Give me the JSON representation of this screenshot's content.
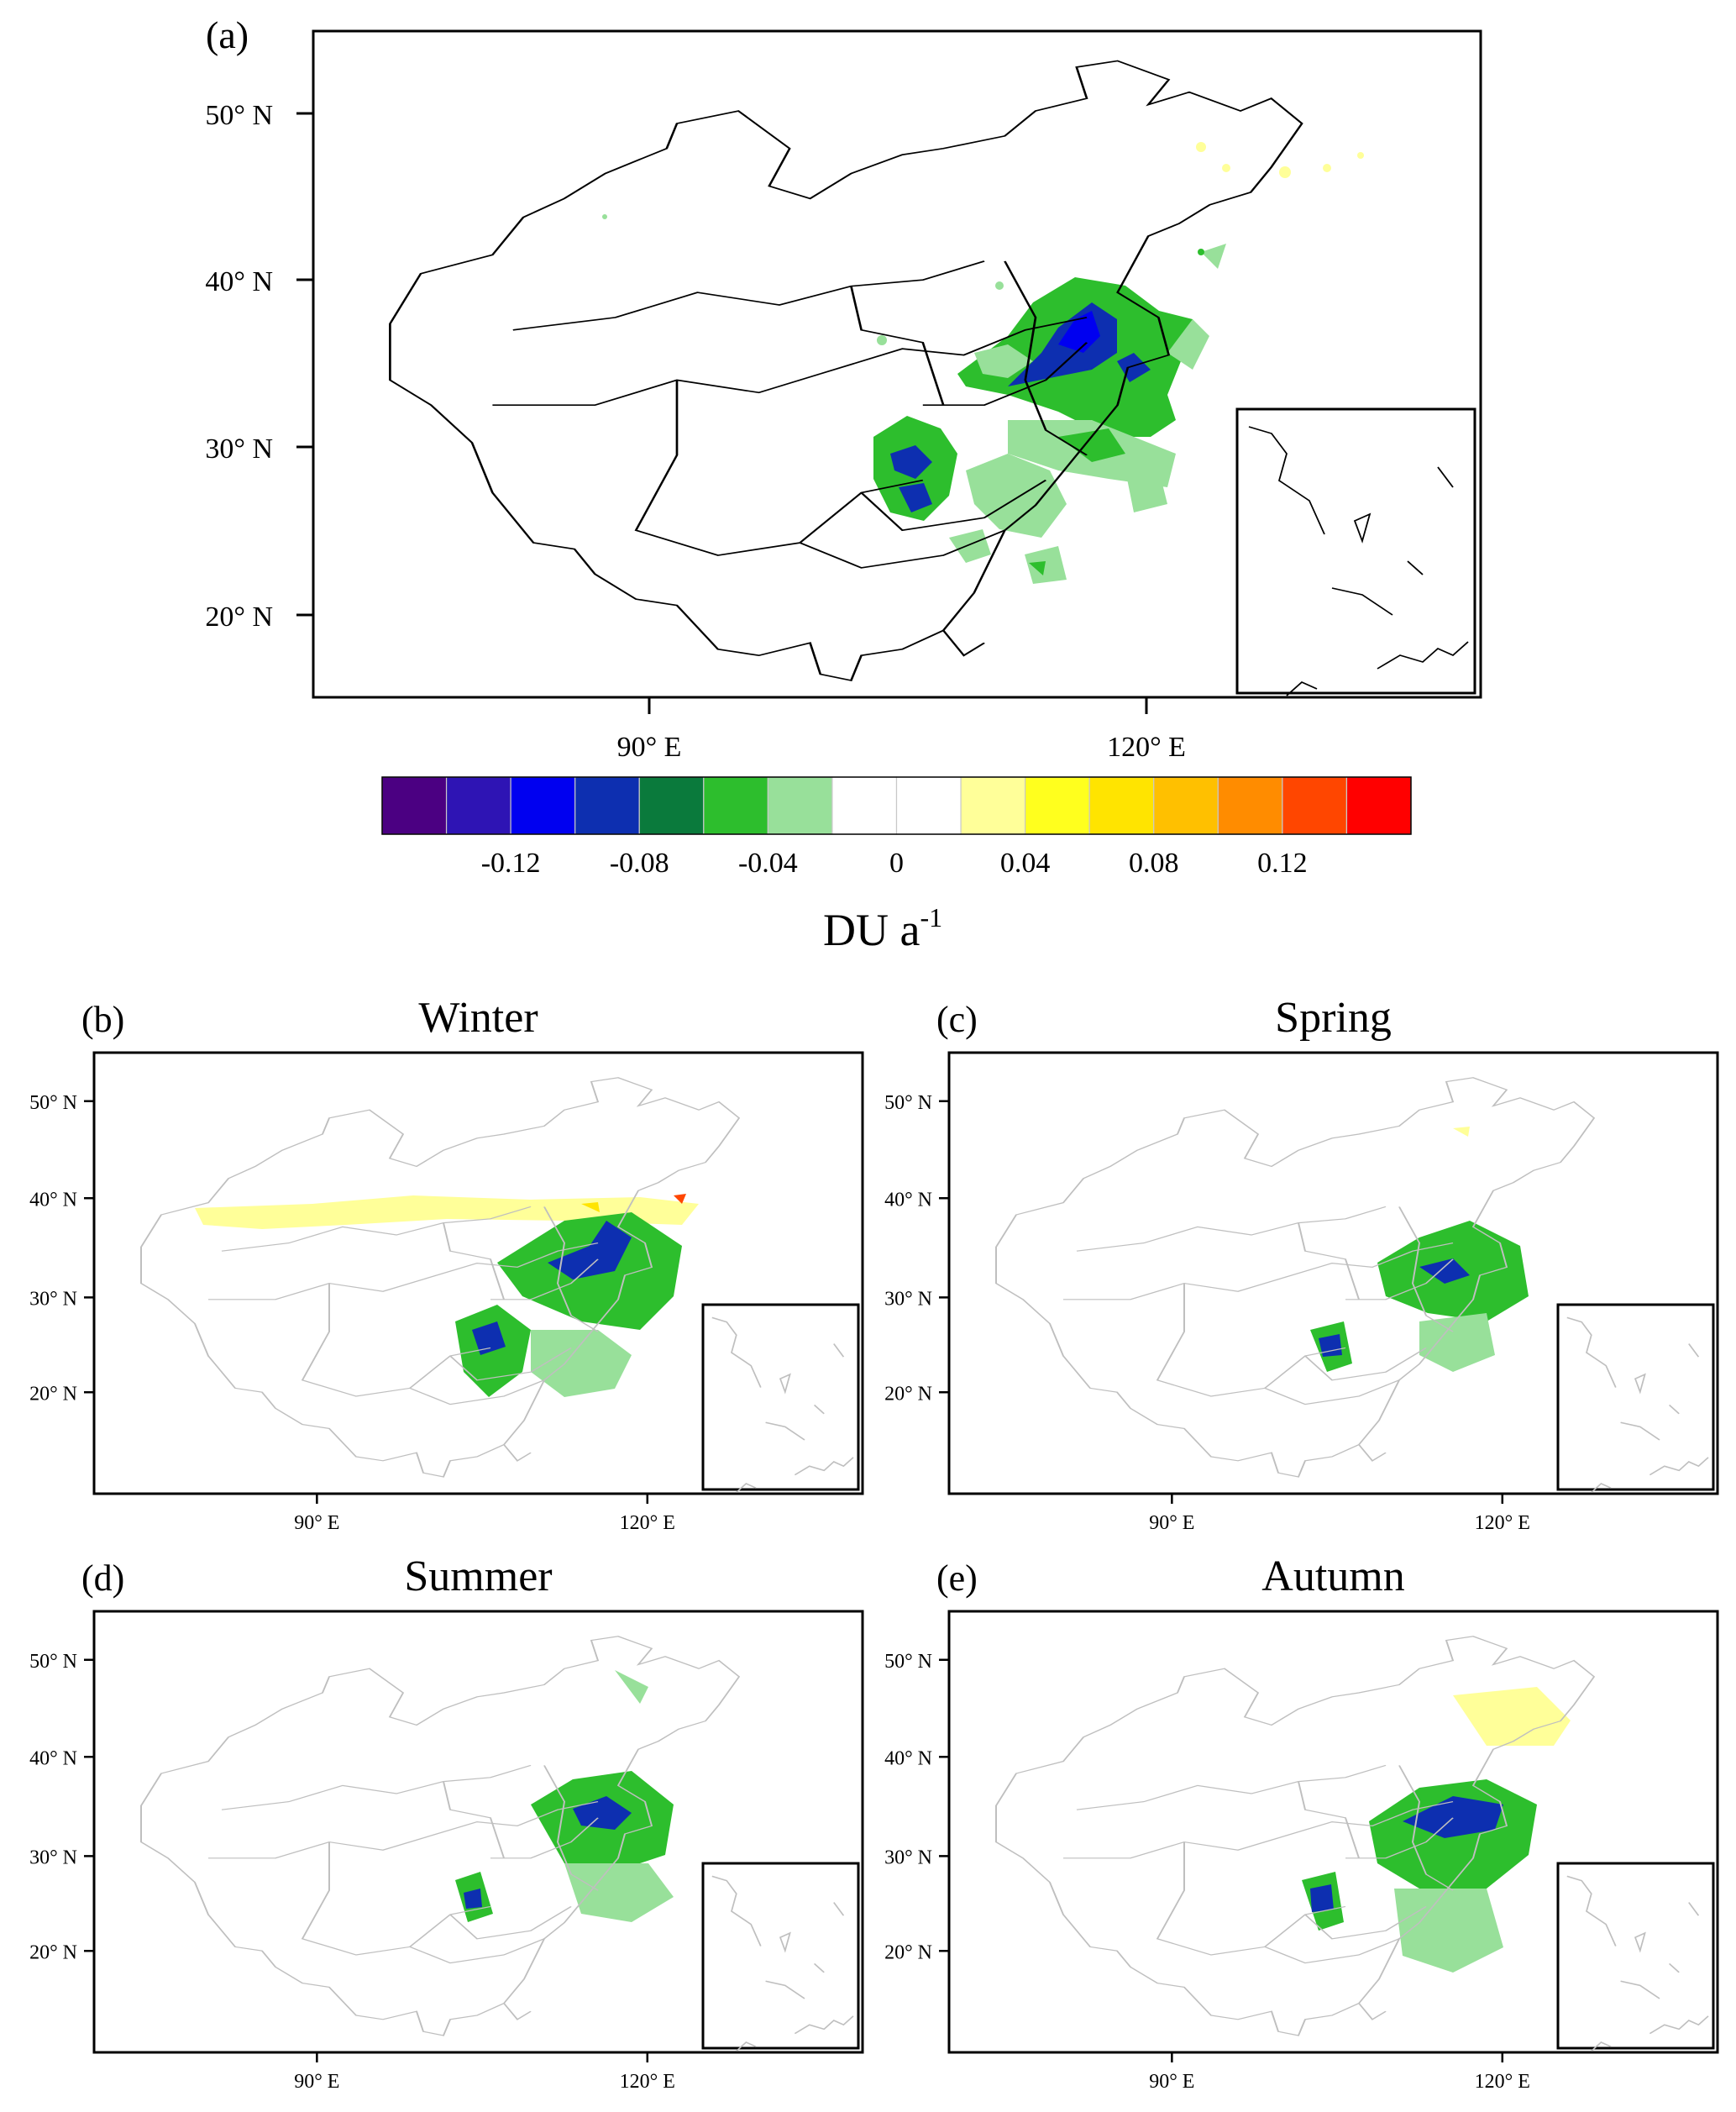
{
  "lat_labels": [
    "20° N",
    "30° N",
    "40° N",
    "50° N"
  ],
  "lon_labels": [
    "90° E",
    "120° E"
  ],
  "main_panel": {
    "letter": "(a)",
    "title": ""
  },
  "colorbar": {
    "colors": [
      "#4B0082",
      "#2E14B4",
      "#0000F0",
      "#0D2FB0",
      "#0A7A3C",
      "#2DBE2D",
      "#98E09A",
      "#FFFFFF",
      "#FFFFFF",
      "#FFFF99",
      "#FFFF1E",
      "#FFE400",
      "#FFC000",
      "#FF8C00",
      "#FF4600",
      "#FF0000"
    ],
    "tick_labels": [
      "-0.12",
      "-0.08",
      "-0.04",
      "0",
      "0.04",
      "0.08",
      "0.12"
    ],
    "unit_base": "DU  a",
    "unit_exp": "-1"
  },
  "seasonal_panels": [
    {
      "letter": "(b)",
      "title": "Winter"
    },
    {
      "letter": "(c)",
      "title": "Spring"
    },
    {
      "letter": "(d)",
      "title": "Summer"
    },
    {
      "letter": "(e)",
      "title": "Autumn"
    }
  ],
  "colors": {
    "boundary_main": "#000000",
    "boundary_seasonal": "#bfbfbf",
    "frame": "#000000"
  }
}
